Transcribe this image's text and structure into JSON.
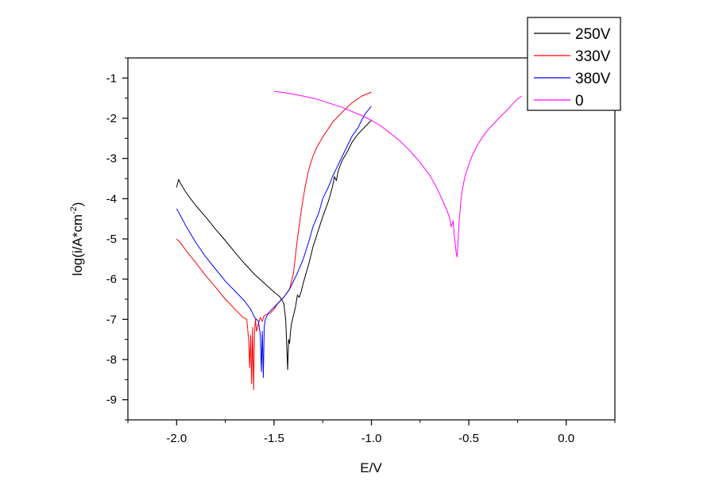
{
  "chart_data": {
    "type": "line",
    "xlabel": "E/V",
    "ylabel": {
      "base": "log(i/A*cm",
      "sup": "-2",
      "end": ")"
    },
    "xlim": [
      -2.25,
      0.25
    ],
    "ylim": [
      -9.5,
      -0.5
    ],
    "x_ticks": [
      "-2.0",
      "-1.5",
      "-1.0",
      "-0.5",
      "0.0"
    ],
    "x_tick_values": [
      -2.0,
      -1.5,
      -1.0,
      -0.5,
      0.0
    ],
    "y_ticks": [
      "-1",
      "-2",
      "-3",
      "-4",
      "-5",
      "-6",
      "-7",
      "-8",
      "-9"
    ],
    "y_tick_values": [
      -1,
      -2,
      -3,
      -4,
      -5,
      -6,
      -7,
      -8,
      -9
    ],
    "grid": false,
    "legend_position": "top-right",
    "series": [
      {
        "name": "250V",
        "color": "#000000",
        "x": [
          -2.0,
          -1.99,
          -1.98,
          -1.95,
          -1.9,
          -1.85,
          -1.8,
          -1.75,
          -1.7,
          -1.65,
          -1.6,
          -1.55,
          -1.5,
          -1.47,
          -1.45,
          -1.44,
          -1.435,
          -1.43,
          -1.428,
          -1.425,
          -1.42,
          -1.415,
          -1.41,
          -1.4,
          -1.39,
          -1.38,
          -1.37,
          -1.36,
          -1.35,
          -1.32,
          -1.3,
          -1.27,
          -1.25,
          -1.22,
          -1.2,
          -1.19,
          -1.18,
          -1.17,
          -1.15,
          -1.12,
          -1.1,
          -1.07,
          -1.05,
          -1.03,
          -1.0
        ],
        "y": [
          -3.72,
          -3.52,
          -3.62,
          -3.86,
          -4.18,
          -4.46,
          -4.76,
          -5.04,
          -5.34,
          -5.62,
          -5.88,
          -6.1,
          -6.32,
          -6.44,
          -6.6,
          -7.0,
          -7.6,
          -8.25,
          -7.9,
          -7.5,
          -7.6,
          -7.3,
          -7.1,
          -6.9,
          -6.7,
          -6.4,
          -6.45,
          -6.3,
          -6.1,
          -5.6,
          -5.2,
          -4.75,
          -4.45,
          -4.05,
          -3.7,
          -3.45,
          -3.55,
          -3.3,
          -3.05,
          -2.8,
          -2.6,
          -2.4,
          -2.3,
          -2.2,
          -2.05
        ]
      },
      {
        "name": "330V",
        "color": "#ff0000",
        "x": [
          -2.0,
          -1.98,
          -1.95,
          -1.9,
          -1.85,
          -1.8,
          -1.75,
          -1.7,
          -1.66,
          -1.64,
          -1.63,
          -1.625,
          -1.62,
          -1.615,
          -1.61,
          -1.605,
          -1.6,
          -1.595,
          -1.59,
          -1.58,
          -1.57,
          -1.56,
          -1.55,
          -1.52,
          -1.5,
          -1.48,
          -1.45,
          -1.42,
          -1.4,
          -1.38,
          -1.36,
          -1.34,
          -1.32,
          -1.3,
          -1.28,
          -1.25,
          -1.22,
          -1.2,
          -1.15,
          -1.1,
          -1.05,
          -1.0
        ],
        "y": [
          -5.0,
          -5.1,
          -5.3,
          -5.6,
          -5.92,
          -6.2,
          -6.5,
          -6.75,
          -6.95,
          -7.0,
          -7.5,
          -8.2,
          -7.4,
          -8.6,
          -7.2,
          -8.75,
          -7.3,
          -7.0,
          -7.3,
          -7.1,
          -6.95,
          -7.05,
          -6.9,
          -6.85,
          -6.75,
          -6.6,
          -6.45,
          -6.25,
          -5.85,
          -5.0,
          -4.3,
          -3.7,
          -3.25,
          -2.95,
          -2.72,
          -2.47,
          -2.25,
          -2.1,
          -1.85,
          -1.62,
          -1.45,
          -1.35
        ]
      },
      {
        "name": "380V",
        "color": "#0000ff",
        "x": [
          -2.0,
          -1.98,
          -1.95,
          -1.9,
          -1.85,
          -1.8,
          -1.75,
          -1.7,
          -1.65,
          -1.62,
          -1.6,
          -1.58,
          -1.57,
          -1.565,
          -1.56,
          -1.555,
          -1.55,
          -1.545,
          -1.54,
          -1.53,
          -1.52,
          -1.5,
          -1.48,
          -1.45,
          -1.42,
          -1.4,
          -1.38,
          -1.35,
          -1.32,
          -1.3,
          -1.27,
          -1.25,
          -1.22,
          -1.2,
          -1.18,
          -1.15,
          -1.12,
          -1.1,
          -1.07,
          -1.05,
          -1.03,
          -1.0
        ],
        "y": [
          -4.25,
          -4.42,
          -4.7,
          -5.1,
          -5.45,
          -5.75,
          -6.05,
          -6.3,
          -6.55,
          -6.75,
          -6.95,
          -7.05,
          -7.4,
          -8.3,
          -7.3,
          -8.45,
          -7.2,
          -7.0,
          -6.95,
          -6.85,
          -6.8,
          -6.7,
          -6.6,
          -6.45,
          -6.25,
          -6.05,
          -5.85,
          -5.5,
          -5.05,
          -4.7,
          -4.35,
          -4.0,
          -3.7,
          -3.45,
          -3.25,
          -2.95,
          -2.65,
          -2.45,
          -2.25,
          -2.05,
          -1.88,
          -1.7
        ]
      },
      {
        "name": "0",
        "color": "#ff00ff",
        "x": [
          -1.5,
          -1.45,
          -1.4,
          -1.35,
          -1.3,
          -1.25,
          -1.2,
          -1.15,
          -1.1,
          -1.05,
          -1.0,
          -0.95,
          -0.9,
          -0.85,
          -0.8,
          -0.75,
          -0.7,
          -0.67,
          -0.65,
          -0.62,
          -0.6,
          -0.59,
          -0.58,
          -0.575,
          -0.57,
          -0.565,
          -0.56,
          -0.555,
          -0.55,
          -0.545,
          -0.54,
          -0.53,
          -0.52,
          -0.5,
          -0.48,
          -0.45,
          -0.42,
          -0.4,
          -0.35,
          -0.3,
          -0.27,
          -0.25,
          -0.23
        ],
        "y": [
          -1.33,
          -1.36,
          -1.4,
          -1.45,
          -1.5,
          -1.57,
          -1.65,
          -1.73,
          -1.83,
          -1.93,
          -2.05,
          -2.2,
          -2.38,
          -2.58,
          -2.82,
          -3.1,
          -3.42,
          -3.68,
          -3.88,
          -4.2,
          -4.45,
          -4.7,
          -4.55,
          -4.9,
          -5.1,
          -5.35,
          -5.45,
          -5.05,
          -4.6,
          -4.3,
          -4.0,
          -3.7,
          -3.45,
          -3.15,
          -2.9,
          -2.62,
          -2.4,
          -2.28,
          -2.02,
          -1.78,
          -1.62,
          -1.52,
          -1.45
        ]
      }
    ]
  }
}
